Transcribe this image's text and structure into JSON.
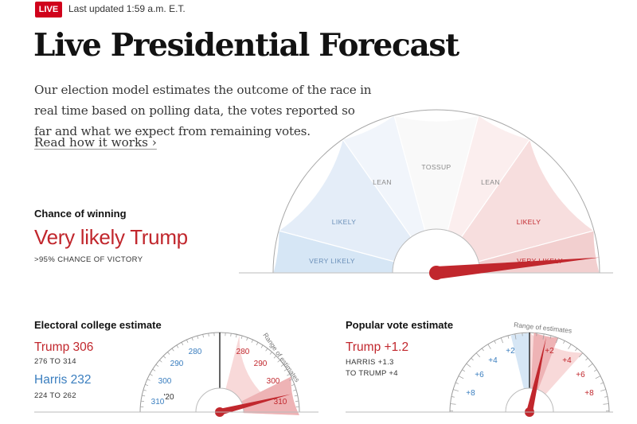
{
  "header": {
    "live_label": "LIVE",
    "updated": "Last updated 1:59 a.m. E.T."
  },
  "title": "Live Presidential Forecast",
  "description": "Our election model estimates the outcome of the race in real time based on polling data, the votes reported so far and what we expect from remaining votes.",
  "read_more": "Read how it works ›",
  "chance": {
    "label": "Chance of winning",
    "headline": "Very likely Trump",
    "detail": ">95% CHANCE OF VICTORY",
    "gauge_labels": [
      "VERY LIKELY",
      "LIKELY",
      "LEAN",
      "TOSSUP",
      "LEAN",
      "LIKELY",
      "VERY LIKELY"
    ],
    "trump_probability": 0.97
  },
  "electoral": {
    "label": "Electoral college estimate",
    "trump_label": "Trump 306",
    "trump_range": "276 TO 314",
    "harris_label": "Harris 232",
    "harris_range": "224 TO 262",
    "range_caption": "Range of estimates",
    "ticks_left": [
      "310",
      "300",
      "290",
      "280"
    ],
    "ticks_right": [
      "280",
      "290",
      "300",
      "310"
    ],
    "center_tick": "'20",
    "trump_value": 306
  },
  "popular": {
    "label": "Popular vote estimate",
    "trump_label": "Trump +1.2",
    "harris_line": "HARRIS +1.3",
    "trump_line": "TO TRUMP +4",
    "range_caption": "Range of estimates",
    "ticks_left": [
      "+8",
      "+6",
      "+4",
      "+2"
    ],
    "ticks_right": [
      "+2",
      "+4",
      "+6",
      "+8"
    ],
    "trump_margin": 1.2
  },
  "colors": {
    "trump": "#c1272d",
    "harris": "#3a7ebf",
    "live": "#d0021b"
  }
}
